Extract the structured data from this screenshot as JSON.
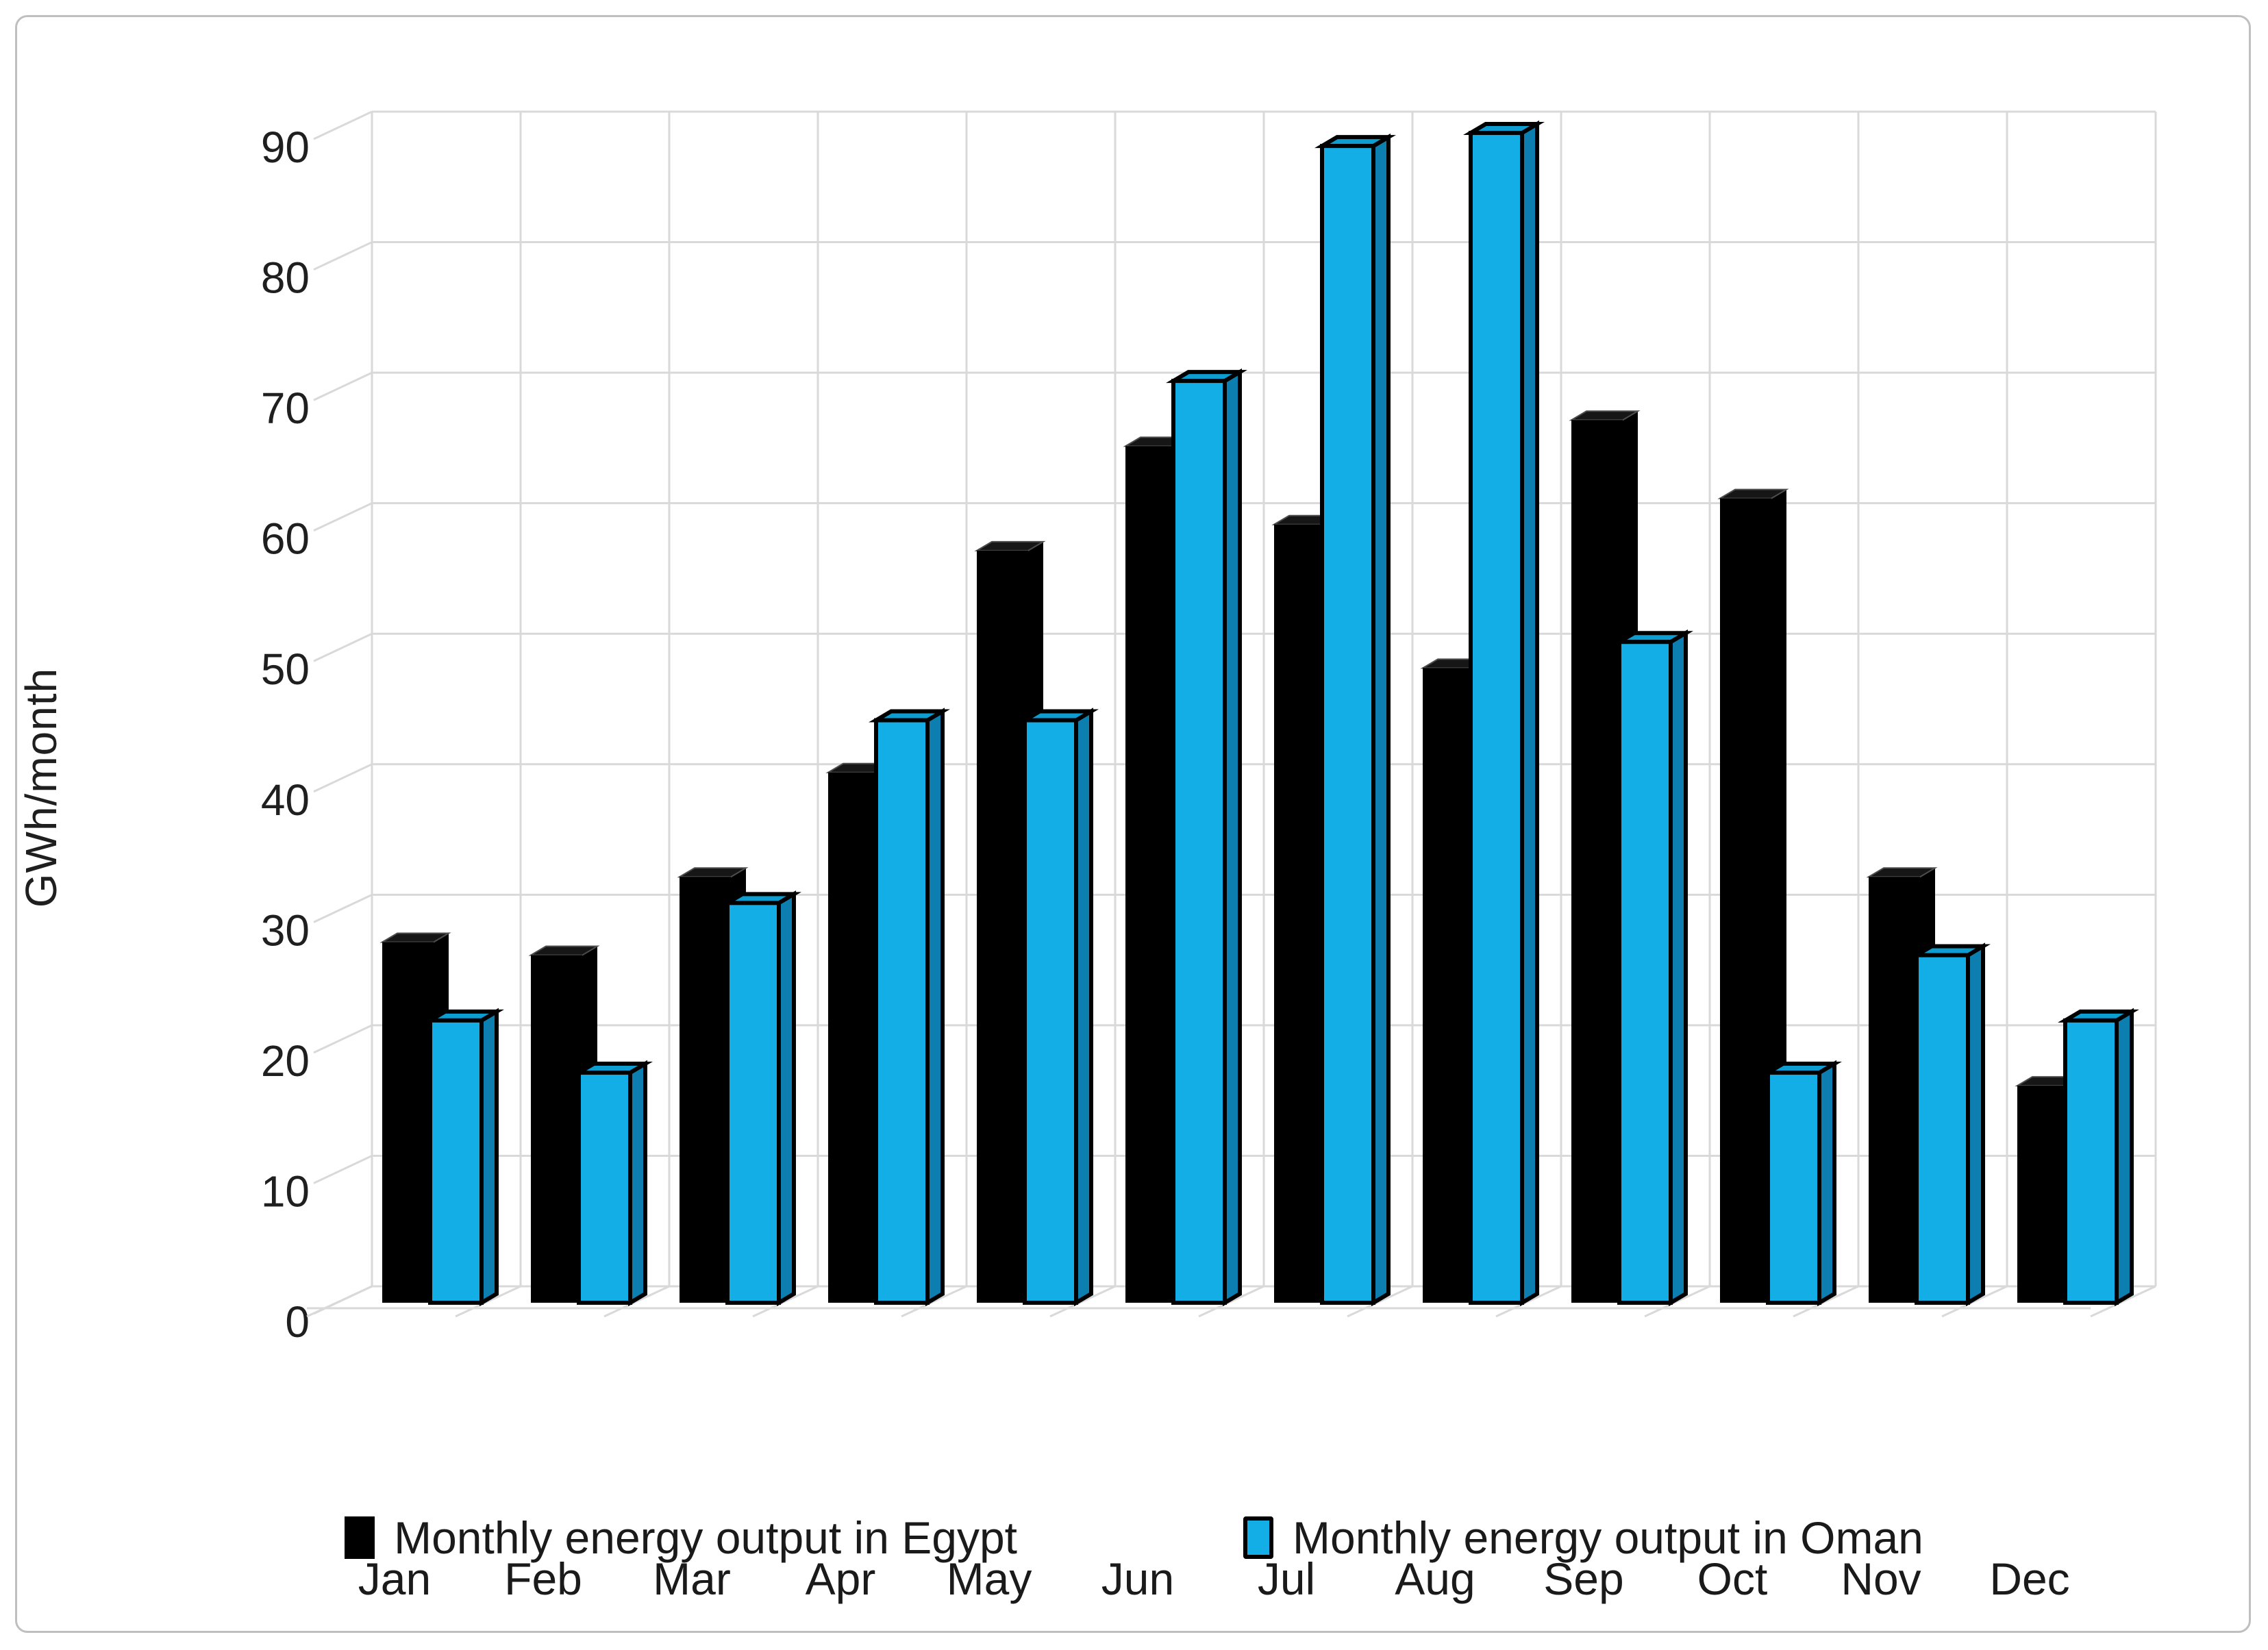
{
  "figure": {
    "background_color": "#FFFFFF",
    "border_color": "#BFBFBF",
    "gridline_color": "#D9D9D9",
    "text_color": "#1F1F1F"
  },
  "chart_data": {
    "type": "bar",
    "style": "3d-clustered-column",
    "title": "",
    "xlabel": "",
    "ylabel": "GWh/month",
    "ylim": [
      0,
      90
    ],
    "ytick_step": 10,
    "y_tick_labels": [
      "90",
      "80",
      "70",
      "60",
      "50",
      "40",
      "30",
      "20",
      "10",
      "0"
    ],
    "grid": true,
    "legend_position": "bottom",
    "categories": [
      "Jan",
      "Feb",
      "Mar",
      "Apr",
      "May",
      "Jun",
      "Jul",
      "Aug",
      "Sep",
      "Oct",
      "Nov",
      "Dec"
    ],
    "series": [
      {
        "name": "Monthly energy output in Egypt",
        "color": "#000000",
        "values": [
          27,
          26,
          32,
          40,
          57,
          65,
          59,
          48,
          67,
          61,
          32,
          16
        ]
      },
      {
        "name": "Monthly energy output in Oman",
        "color": "#14AEE6",
        "side_color": "#0C7FB0",
        "top_color": "#0D9DD1",
        "outline_color": "#000000",
        "values": [
          21,
          17,
          30,
          44,
          44,
          70,
          88,
          89,
          50,
          17,
          26,
          21
        ]
      }
    ]
  }
}
